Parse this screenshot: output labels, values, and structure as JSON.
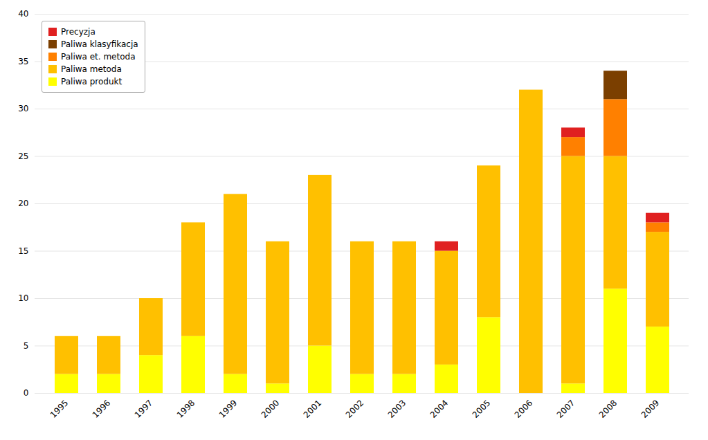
{
  "chart_data": {
    "type": "bar",
    "stacked": true,
    "categories": [
      "1995",
      "1996",
      "1997",
      "1998",
      "1999",
      "2000",
      "2001",
      "2002",
      "2003",
      "2004",
      "2005",
      "2006",
      "2007",
      "2008",
      "2009"
    ],
    "series": [
      {
        "name": "Paliwa produkt",
        "color": "#FFFF00",
        "values": [
          2,
          2,
          4,
          6,
          2,
          1,
          5,
          2,
          2,
          3,
          8,
          0,
          1,
          11,
          7
        ]
      },
      {
        "name": "Paliwa metoda",
        "color": "#FFC000",
        "values": [
          4,
          4,
          6,
          12,
          19,
          15,
          18,
          14,
          14,
          12,
          16,
          32,
          24,
          14,
          10
        ]
      },
      {
        "name": "Paliwa et. metoda",
        "color": "#FF8000",
        "values": [
          0,
          0,
          0,
          0,
          0,
          0,
          0,
          0,
          0,
          0,
          0,
          0,
          2,
          6,
          1
        ]
      },
      {
        "name": "Paliwa klasyfikacja",
        "color": "#7B3F00",
        "values": [
          0,
          0,
          0,
          0,
          0,
          0,
          0,
          0,
          0,
          0,
          0,
          0,
          0,
          3,
          0
        ]
      },
      {
        "name": "Precyzja",
        "color": "#E02020",
        "values": [
          0,
          0,
          0,
          0,
          0,
          0,
          0,
          0,
          0,
          1,
          0,
          0,
          1,
          0,
          1
        ]
      }
    ],
    "ylim": [
      0,
      40
    ],
    "yticks": [
      0,
      5,
      10,
      15,
      20,
      25,
      30,
      35,
      40
    ],
    "grid": true,
    "legend": "upper left"
  }
}
